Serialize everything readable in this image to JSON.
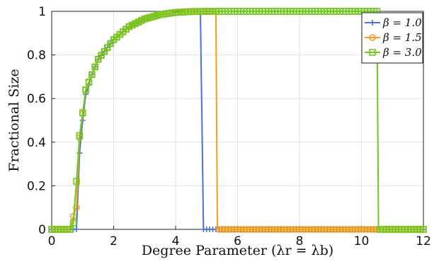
{
  "chart_data": {
    "type": "line",
    "xlabel": "Degree Parameter (λr = λb)",
    "ylabel": "Fractional Size",
    "xlim": [
      0,
      12
    ],
    "ylim": [
      0,
      1
    ],
    "x_ticks": [
      "0",
      "2",
      "4",
      "6",
      "8",
      "10",
      "12"
    ],
    "y_ticks": [
      "0",
      "0.2",
      "0.4",
      "0.6",
      "0.8",
      "1"
    ],
    "grid": true,
    "legend_position": "top-right",
    "series": [
      {
        "name": "β = 1.0",
        "color": "#4a72d8",
        "marker": "plus",
        "x": [
          0,
          0.8,
          0.9,
          1.0,
          1.1,
          1.3,
          1.5,
          2.0,
          2.5,
          3.0,
          3.5,
          4.0,
          4.5,
          4.8,
          4.9,
          12
        ],
        "y": [
          0,
          0,
          0.35,
          0.5,
          0.62,
          0.71,
          0.78,
          0.87,
          0.93,
          0.965,
          0.985,
          0.995,
          0.999,
          1.0,
          0,
          0
        ]
      },
      {
        "name": "β = 1.5",
        "color": "#f29e1f",
        "marker": "circle",
        "x": [
          0,
          0.6,
          0.7,
          0.8,
          0.9,
          1.0,
          1.1,
          1.3,
          1.5,
          2.0,
          2.5,
          3.0,
          3.5,
          4.0,
          4.5,
          5.0,
          5.3,
          5.35,
          12
        ],
        "y": [
          0,
          0,
          0.06,
          0.1,
          0.42,
          0.53,
          0.64,
          0.71,
          0.78,
          0.87,
          0.93,
          0.965,
          0.985,
          0.995,
          0.999,
          1.0,
          1.0,
          0,
          0
        ]
      },
      {
        "name": "β = 3.0",
        "color": "#6ecb1e",
        "marker": "square",
        "x": [
          0,
          0.6,
          0.7,
          0.75,
          0.8,
          0.9,
          1.0,
          1.1,
          1.3,
          1.5,
          2.0,
          2.5,
          3.0,
          3.5,
          4.0,
          4.5,
          5.0,
          7.0,
          10.5,
          10.55,
          12
        ],
        "y": [
          0,
          0,
          0.03,
          0.13,
          0.22,
          0.43,
          0.535,
          0.64,
          0.71,
          0.78,
          0.87,
          0.93,
          0.965,
          0.985,
          0.995,
          0.999,
          1.0,
          1.0,
          1.0,
          0,
          0
        ]
      }
    ]
  }
}
